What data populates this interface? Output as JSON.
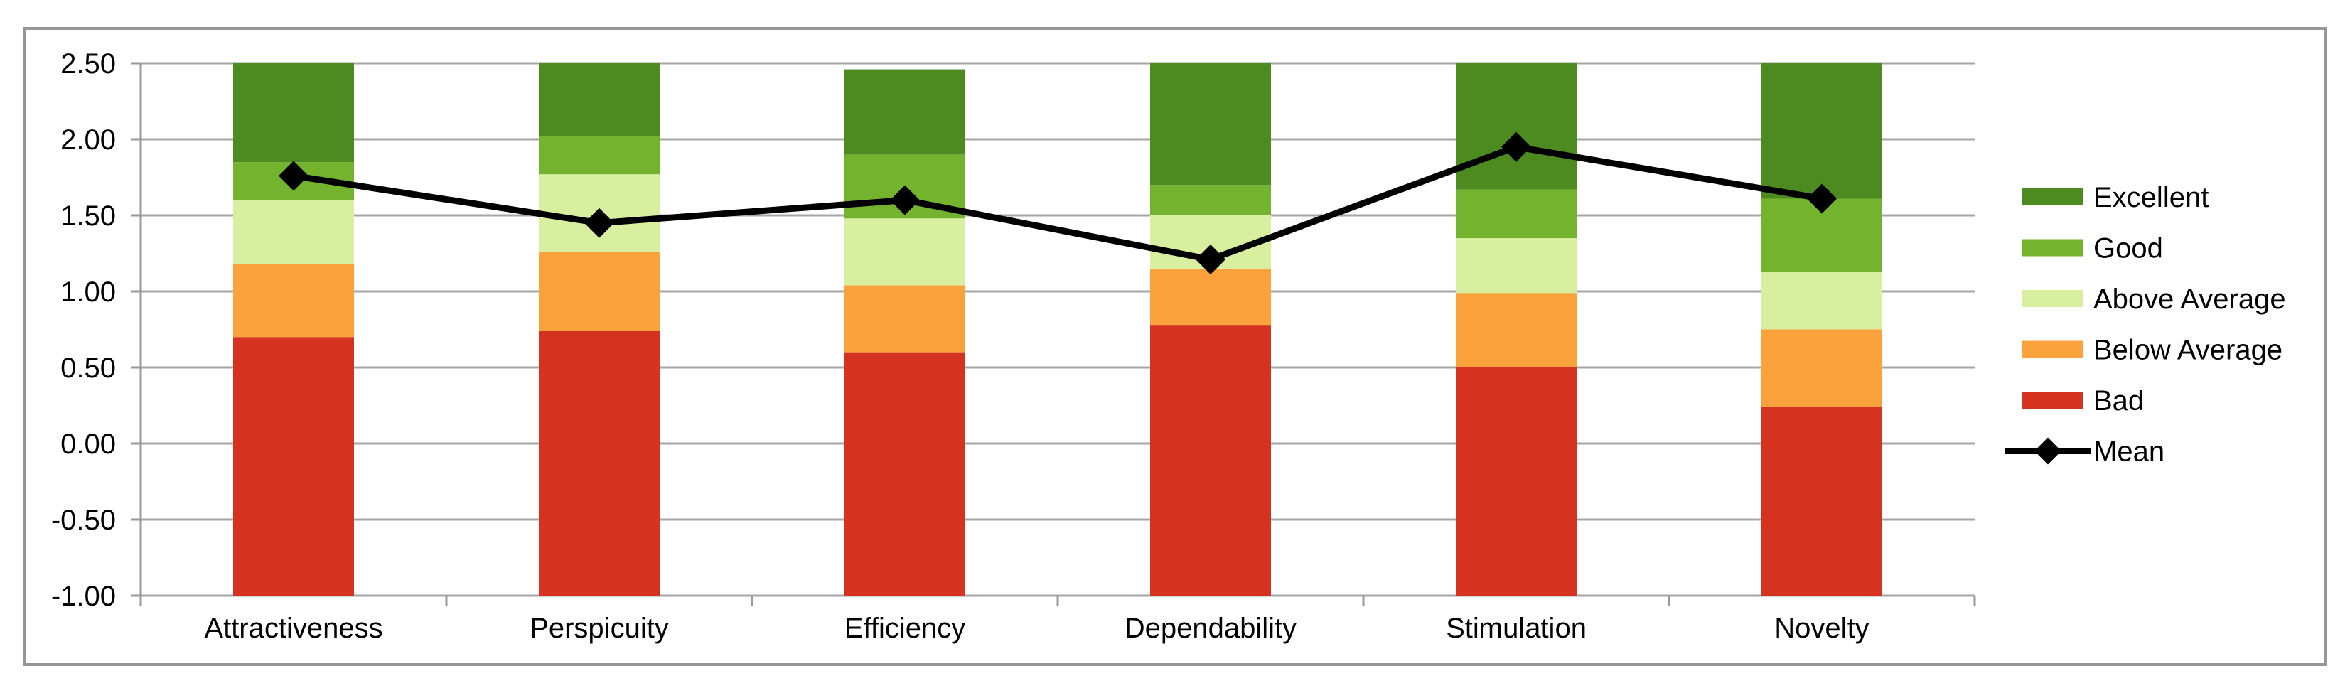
{
  "chart_data": {
    "type": "bar",
    "subtype": "stacked-bars-with-line-overlay",
    "title": "",
    "xlabel": "",
    "ylabel": "",
    "categories": [
      "Attractiveness",
      "Perspicuity",
      "Efficiency",
      "Dependability",
      "Stimulation",
      "Novelty"
    ],
    "ylim": [
      -1.0,
      2.5
    ],
    "y_ticks": [
      "2.50",
      "2.00",
      "1.50",
      "1.00",
      "0.50",
      "0.00",
      "-0.50",
      "-1.00"
    ],
    "grid": true,
    "segment_base": -1.0,
    "series": [
      {
        "name": "Bad",
        "color": "#D5331F",
        "tops": [
          0.7,
          0.74,
          0.6,
          0.78,
          0.5,
          0.24
        ]
      },
      {
        "name": "Below Average",
        "color": "#FBA23C",
        "tops": [
          1.18,
          1.26,
          1.04,
          1.15,
          0.99,
          0.75
        ]
      },
      {
        "name": "Above Average",
        "color": "#D8EFA0",
        "tops": [
          1.6,
          1.77,
          1.48,
          1.5,
          1.35,
          1.13
        ]
      },
      {
        "name": "Good",
        "color": "#73B32D",
        "tops": [
          1.85,
          2.02,
          1.9,
          1.7,
          1.67,
          1.61
        ]
      },
      {
        "name": "Excellent",
        "color": "#4D8B20",
        "tops": [
          2.5,
          2.5,
          2.46,
          2.5,
          2.5,
          2.5
        ]
      }
    ],
    "mean_series": {
      "name": "Mean",
      "color": "#000000",
      "marker": "diamond",
      "values": [
        1.76,
        1.45,
        1.6,
        1.21,
        1.95,
        1.61
      ]
    },
    "legend_position": "right",
    "legend_entries": [
      {
        "label": "Excellent",
        "swatch": "box",
        "color": "#4D8B20"
      },
      {
        "label": "Good",
        "swatch": "box",
        "color": "#73B32D"
      },
      {
        "label": "Above Average",
        "swatch": "box",
        "color": "#D8EFA0"
      },
      {
        "label": "Below Average",
        "swatch": "box",
        "color": "#FBA23C"
      },
      {
        "label": "Bad",
        "swatch": "box",
        "color": "#D5331F"
      },
      {
        "label": "Mean",
        "swatch": "line-diamond",
        "color": "#000000"
      }
    ],
    "style_colors": {
      "gridline": "#A6A6A6",
      "axis": "#999999",
      "frame_border": "#969696",
      "text": "#000000",
      "background": "#FFFFFF"
    }
  }
}
